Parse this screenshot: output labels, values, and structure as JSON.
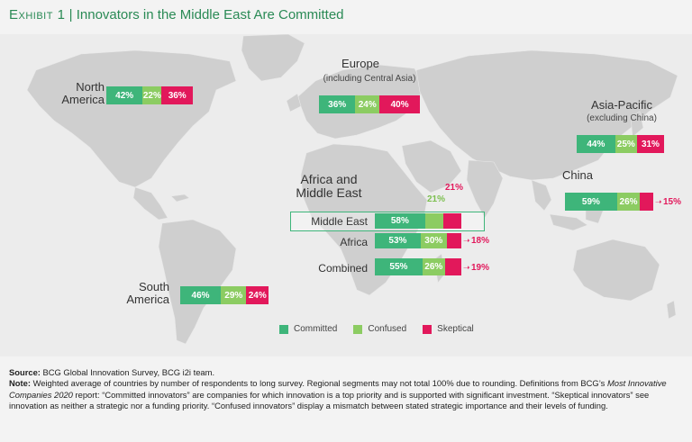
{
  "title": {
    "exhibit": "Exhibit 1",
    "separator": "|",
    "text": "Innovators in the Middle East Are Committed"
  },
  "colors": {
    "committed": "#3eb57a",
    "confused": "#8ccc62",
    "skeptical": "#e2185b",
    "title": "#2a8a55"
  },
  "regions": {
    "north_america": {
      "label_line1": "North",
      "label_line2": "America",
      "committed": 42,
      "confused": 22,
      "skeptical": 36,
      "committed_text": "42%",
      "confused_text": "22%",
      "skeptical_text": "36%"
    },
    "europe": {
      "label": "Europe",
      "sublabel": "(including Central Asia)",
      "committed": 36,
      "confused": 24,
      "skeptical": 40,
      "committed_text": "36%",
      "confused_text": "24%",
      "skeptical_text": "40%"
    },
    "asia_pacific": {
      "label": "Asia-Pacific",
      "sublabel": "(excluding China)",
      "committed": 44,
      "confused": 25,
      "skeptical": 31,
      "committed_text": "44%",
      "confused_text": "25%",
      "skeptical_text": "31%"
    },
    "china": {
      "label": "China",
      "committed": 59,
      "confused": 26,
      "skeptical": 15,
      "committed_text": "59%",
      "confused_text": "26%",
      "skeptical_text": "15%"
    },
    "south_america": {
      "label_line1": "South",
      "label_line2": "America",
      "committed": 46,
      "confused": 29,
      "skeptical": 24,
      "committed_text": "46%",
      "confused_text": "29%",
      "skeptical_text": "24%"
    },
    "africa_middle_east": {
      "label_line1": "Africa and",
      "label_line2": "Middle East",
      "middle_east": {
        "label": "Middle East",
        "committed": 58,
        "confused": 21,
        "skeptical": 21,
        "committed_text": "58%",
        "confused_text": "21%",
        "skeptical_text": "21%"
      },
      "africa": {
        "label": "Africa",
        "committed": 53,
        "confused": 30,
        "skeptical": 18,
        "committed_text": "53%",
        "confused_text": "30%",
        "skeptical_text": "18%"
      },
      "combined": {
        "label": "Combined",
        "committed": 55,
        "confused": 26,
        "skeptical": 19,
        "committed_text": "55%",
        "confused_text": "26%",
        "skeptical_text": "19%"
      }
    }
  },
  "legend": {
    "committed": "Committed",
    "confused": "Confused",
    "skeptical": "Skeptical"
  },
  "footer": {
    "source_label": "Source:",
    "source_text": "BCG Global Innovation Survey, BCG i2i team.",
    "note_label": "Note:",
    "note_text": "Weighted average of countries by number of respondents to long survey. Regional segments may not total 100% due to rounding.",
    "definitions_pre": "Definitions from BCG’s ",
    "definitions_report": "Most Innovative Companies 2020",
    "definitions_post": " report: “Committed innovators” are companies for which innovation is a top priority and is supported with significant investment. “Skeptical innovators” see innovation as neither a strategic nor a funding priority. “Confused innovators” display a mismatch between stated strategic importance and their levels of funding."
  }
}
